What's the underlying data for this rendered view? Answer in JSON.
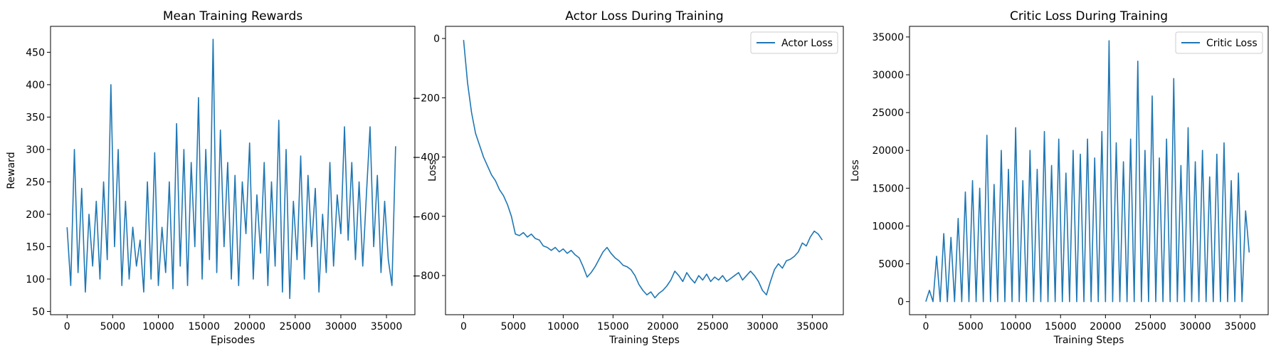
{
  "chart_data": [
    {
      "type": "line",
      "title": "Mean Training Rewards",
      "x_label": "Episodes",
      "y_label": "Reward",
      "color": "#1f77b4",
      "grid": false,
      "x": [
        0,
        400,
        800,
        1200,
        1600,
        2000,
        2400,
        2800,
        3200,
        3600,
        4000,
        4400,
        4800,
        5200,
        5600,
        6000,
        6400,
        6800,
        7200,
        7600,
        8000,
        8400,
        8800,
        9200,
        9600,
        10000,
        10400,
        10800,
        11200,
        11600,
        12000,
        12400,
        12800,
        13200,
        13600,
        14000,
        14400,
        14800,
        15200,
        15600,
        16000,
        16400,
        16800,
        17200,
        17600,
        18000,
        18400,
        18800,
        19200,
        19600,
        20000,
        20400,
        20800,
        21200,
        21600,
        22000,
        22400,
        22800,
        23200,
        23600,
        24000,
        24400,
        24800,
        25200,
        25600,
        26000,
        26400,
        26800,
        27200,
        27600,
        28000,
        28400,
        28800,
        29200,
        29600,
        30000,
        30400,
        30800,
        31200,
        31600,
        32000,
        32400,
        32800,
        33200,
        33600,
        34000,
        34400,
        34800,
        35200,
        35600,
        36000
      ],
      "values": [
        180,
        90,
        300,
        110,
        240,
        80,
        200,
        120,
        220,
        100,
        250,
        130,
        400,
        150,
        300,
        90,
        220,
        100,
        180,
        120,
        160,
        80,
        250,
        100,
        295,
        90,
        180,
        110,
        250,
        85,
        340,
        120,
        300,
        90,
        280,
        150,
        380,
        100,
        300,
        130,
        470,
        110,
        330,
        150,
        280,
        100,
        260,
        90,
        250,
        170,
        310,
        100,
        230,
        140,
        280,
        90,
        250,
        120,
        345,
        80,
        300,
        70,
        220,
        130,
        290,
        100,
        260,
        150,
        240,
        80,
        200,
        110,
        280,
        120,
        230,
        170,
        335,
        160,
        280,
        130,
        250,
        120,
        230,
        335,
        150,
        260,
        110,
        220,
        130,
        90,
        305
      ],
      "xlim": [
        -1815,
        38115
      ],
      "xticks": [
        0,
        5000,
        10000,
        15000,
        20000,
        25000,
        30000,
        35000
      ],
      "ylim": [
        45,
        490
      ],
      "yticks": [
        50,
        100,
        150,
        200,
        250,
        300,
        350,
        400,
        450
      ]
    },
    {
      "type": "line",
      "title": "Actor Loss During Training",
      "x_label": "Training Steps",
      "y_label": "Loss",
      "grid": false,
      "legend": "upper right",
      "x": [
        0,
        400,
        800,
        1200,
        1600,
        2000,
        2400,
        2800,
        3200,
        3600,
        4000,
        4400,
        4800,
        5200,
        5600,
        6000,
        6400,
        6800,
        7200,
        7600,
        8000,
        8400,
        8800,
        9200,
        9600,
        10000,
        10400,
        10800,
        11200,
        11600,
        12000,
        12400,
        12800,
        13200,
        13600,
        14000,
        14400,
        14800,
        15200,
        15600,
        16000,
        16400,
        16800,
        17200,
        17600,
        18000,
        18400,
        18800,
        19200,
        19600,
        20000,
        20400,
        20800,
        21200,
        21600,
        22000,
        22400,
        22800,
        23200,
        23600,
        24000,
        24400,
        24800,
        25200,
        25600,
        26000,
        26400,
        26800,
        27200,
        27600,
        28000,
        28400,
        28800,
        29200,
        29600,
        30000,
        30400,
        30800,
        31200,
        31600,
        32000,
        32400,
        32800,
        33200,
        33600,
        34000,
        34400,
        34800,
        35200,
        35600,
        36000
      ],
      "series": [
        {
          "name": "Actor Loss",
          "color": "#1f77b4",
          "values": [
            -5,
            -150,
            -250,
            -320,
            -360,
            -400,
            -430,
            -460,
            -480,
            -510,
            -530,
            -560,
            -600,
            -660,
            -665,
            -655,
            -670,
            -660,
            -675,
            -680,
            -700,
            -705,
            -715,
            -705,
            -720,
            -710,
            -725,
            -715,
            -730,
            -740,
            -770,
            -805,
            -790,
            -770,
            -745,
            -720,
            -705,
            -725,
            -740,
            -750,
            -765,
            -770,
            -780,
            -800,
            -830,
            -850,
            -865,
            -855,
            -875,
            -860,
            -850,
            -835,
            -815,
            -785,
            -800,
            -820,
            -790,
            -810,
            -825,
            -800,
            -815,
            -795,
            -820,
            -805,
            -815,
            -800,
            -820,
            -810,
            -800,
            -790,
            -815,
            -800,
            -785,
            -800,
            -820,
            -850,
            -865,
            -820,
            -780,
            -760,
            -775,
            -750,
            -745,
            -735,
            -720,
            -690,
            -700,
            -670,
            -650,
            -660,
            -680
          ]
        }
      ],
      "xlim": [
        -1815,
        38115
      ],
      "xticks": [
        0,
        5000,
        10000,
        15000,
        20000,
        25000,
        30000,
        35000
      ],
      "ylim": [
        -932,
        41
      ],
      "yticks": [
        {
          "value": -800,
          "label": "−800"
        },
        {
          "value": -600,
          "label": "−600"
        },
        {
          "value": -400,
          "label": "−400"
        },
        {
          "value": -200,
          "label": "−200"
        },
        0
      ]
    },
    {
      "type": "line",
      "title": "Critic Loss During Training",
      "x_label": "Training Steps",
      "y_label": "Loss",
      "grid": false,
      "legend": "upper right",
      "x": [
        0,
        400,
        800,
        1200,
        1600,
        2000,
        2400,
        2800,
        3200,
        3600,
        4000,
        4400,
        4800,
        5200,
        5600,
        6000,
        6400,
        6800,
        7200,
        7600,
        8000,
        8400,
        8800,
        9200,
        9600,
        10000,
        10400,
        10800,
        11200,
        11600,
        12000,
        12400,
        12800,
        13200,
        13600,
        14000,
        14400,
        14800,
        15200,
        15600,
        16000,
        16400,
        16800,
        17200,
        17600,
        18000,
        18400,
        18800,
        19200,
        19600,
        20000,
        20400,
        20800,
        21200,
        21600,
        22000,
        22400,
        22800,
        23200,
        23600,
        24000,
        24400,
        24800,
        25200,
        25600,
        26000,
        26400,
        26800,
        27200,
        27600,
        28000,
        28400,
        28800,
        29200,
        29600,
        30000,
        30400,
        30800,
        31200,
        31600,
        32000,
        32400,
        32800,
        33200,
        33600,
        34000,
        34400,
        34800,
        35200,
        35600,
        36000
      ],
      "series": [
        {
          "name": "Critic Loss",
          "color": "#1f77b4",
          "values": [
            0,
            1500,
            0,
            6000,
            0,
            9000,
            0,
            8500,
            0,
            11000,
            0,
            14500,
            0,
            16000,
            0,
            15000,
            0,
            22000,
            0,
            15500,
            0,
            20000,
            0,
            17500,
            0,
            23000,
            0,
            16000,
            0,
            20000,
            0,
            17500,
            0,
            22500,
            0,
            18000,
            0,
            21500,
            0,
            17000,
            0,
            20000,
            0,
            19500,
            0,
            21500,
            0,
            19000,
            0,
            22500,
            0,
            34500,
            0,
            21000,
            0,
            18500,
            0,
            21500,
            0,
            31800,
            0,
            20000,
            0,
            27200,
            0,
            19000,
            0,
            21500,
            0,
            29500,
            0,
            18000,
            0,
            23000,
            0,
            18500,
            0,
            20000,
            0,
            16500,
            0,
            19500,
            0,
            21000,
            0,
            16000,
            0,
            17000,
            0,
            12000,
            6500
          ]
        }
      ],
      "xlim": [
        -1815,
        38115
      ],
      "xticks": [
        0,
        5000,
        10000,
        15000,
        20000,
        25000,
        30000,
        35000
      ],
      "ylim": [
        -1728,
        36404
      ],
      "yticks": [
        0,
        5000,
        10000,
        15000,
        20000,
        25000,
        30000,
        35000
      ]
    }
  ]
}
